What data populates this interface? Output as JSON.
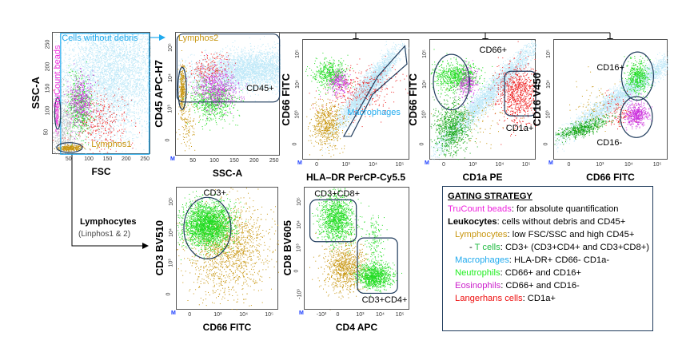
{
  "colors": {
    "debris": "#bfbfbf",
    "cells": "#bfe8f8",
    "neutro": "#22dd22",
    "tcell": "#18a818",
    "eos": "#cc33dd",
    "lang": "#ee2020",
    "lympho": "#c89610",
    "beads": "#ee33dd",
    "macro": "#20aaee",
    "gate": "#1f3b5c"
  },
  "panels": {
    "p1": {
      "ylabel": "SSC-A",
      "xlabel": "FSC",
      "xticks": [
        "50",
        "100",
        "150",
        "200",
        "250"
      ],
      "yticks": [
        "50",
        "100",
        "150",
        "200",
        "250"
      ],
      "gates": {
        "beads": "TruCount beads",
        "cells": "Cells without debris",
        "lympho1": "Lymphos1"
      }
    },
    "p2": {
      "ylabel": "CD45 APC-H7",
      "xlabel": "SSC-A",
      "xticks": [
        "50",
        "100",
        "150",
        "200",
        "250"
      ],
      "yticks": [
        "0",
        "10³",
        "10⁴",
        "10⁵"
      ],
      "gates": {
        "lympho2": "Lymphos2",
        "cd45": "CD45+"
      }
    },
    "p3": {
      "ylabel": "CD66 FITC",
      "xlabel": "HLA–DR PerCP-Cy5.5",
      "xticks": [
        "0",
        "10³",
        "10⁴",
        "10⁵"
      ],
      "yticks": [
        "0",
        "10³",
        "10⁴",
        "10⁵"
      ],
      "gates": {
        "macro": "Macrophages"
      }
    },
    "p4": {
      "ylabel": "CD66 FITC",
      "xlabel": "CD1a PE",
      "xticks": [
        "0",
        "10³",
        "10⁴",
        "10⁵"
      ],
      "yticks": [
        "0",
        "10³",
        "10⁴",
        "10⁵"
      ],
      "gates": {
        "cd66": "CD66+",
        "cd1a": "CD1a+"
      }
    },
    "p5": {
      "ylabel": "CD16 V450",
      "xlabel": "CD66 FITC",
      "xticks": [
        "0",
        "10³",
        "10⁴",
        "10⁵"
      ],
      "yticks": [
        "0",
        "10³",
        "10⁴",
        "10⁵"
      ],
      "gates": {
        "cd16p": "CD16+",
        "cd16m": "CD16-"
      }
    },
    "p6": {
      "ylabel": "CD3 BV510",
      "xlabel": "CD66 FITC",
      "xticks": [
        "0",
        "10³",
        "10⁴",
        "10⁵"
      ],
      "yticks": [
        "0",
        "10³",
        "10⁴",
        "10⁵"
      ],
      "gates": {
        "cd3": "CD3+"
      }
    },
    "p7": {
      "ylabel": "CD8 BV605",
      "xlabel": "CD4 APC",
      "xticks": [
        "-10³",
        "0",
        "10³",
        "10⁴",
        "10⁵"
      ],
      "yticks": [
        "-10³",
        "0",
        "10³",
        "10⁴",
        "10⁵"
      ],
      "gates": {
        "cd8": "CD3+CD8+",
        "cd4": "CD3+CD4+"
      }
    }
  },
  "marker": "M",
  "lymphocytes": {
    "title": "Lymphocytes",
    "sub": "(Linphos1  & 2)"
  },
  "gating": {
    "title": "GATING  STRATEGY",
    "rows": [
      {
        "term": "TruCount  beads",
        "desc": ": for absolute quantification",
        "color": "#ee22dd",
        "indent": 0
      },
      {
        "term": "Leukocytes",
        "desc": ":  cells without debris and CD45+",
        "color": "#000000",
        "indent": 0
      },
      {
        "term": "Lymphocytes",
        "desc": ":  low FSC/SSC and high CD45+",
        "color": "#c89610",
        "indent": 1
      },
      {
        "term": "T cells",
        "prefix": "- ",
        "desc": ": CD3+ (CD3+CD4+  and CD3+CD8+)",
        "color": "#22bb44",
        "indent": 2
      },
      {
        "term": "Macrophages",
        "desc": ":  HLA-DR+  CD66- CD1a-",
        "color": "#20aaee",
        "indent": 1
      },
      {
        "term": "Neutrophils",
        "desc": ": CD66+ and CD16+",
        "color": "#22ee22",
        "indent": 1
      },
      {
        "term": "Eosinophils",
        "desc": ":  CD66+ and CD16-",
        "color": "#cc22cc",
        "indent": 1
      },
      {
        "term": "Langerhans cells",
        "desc": ":  CD1a+",
        "color": "#ee1111",
        "indent": 1
      }
    ]
  }
}
